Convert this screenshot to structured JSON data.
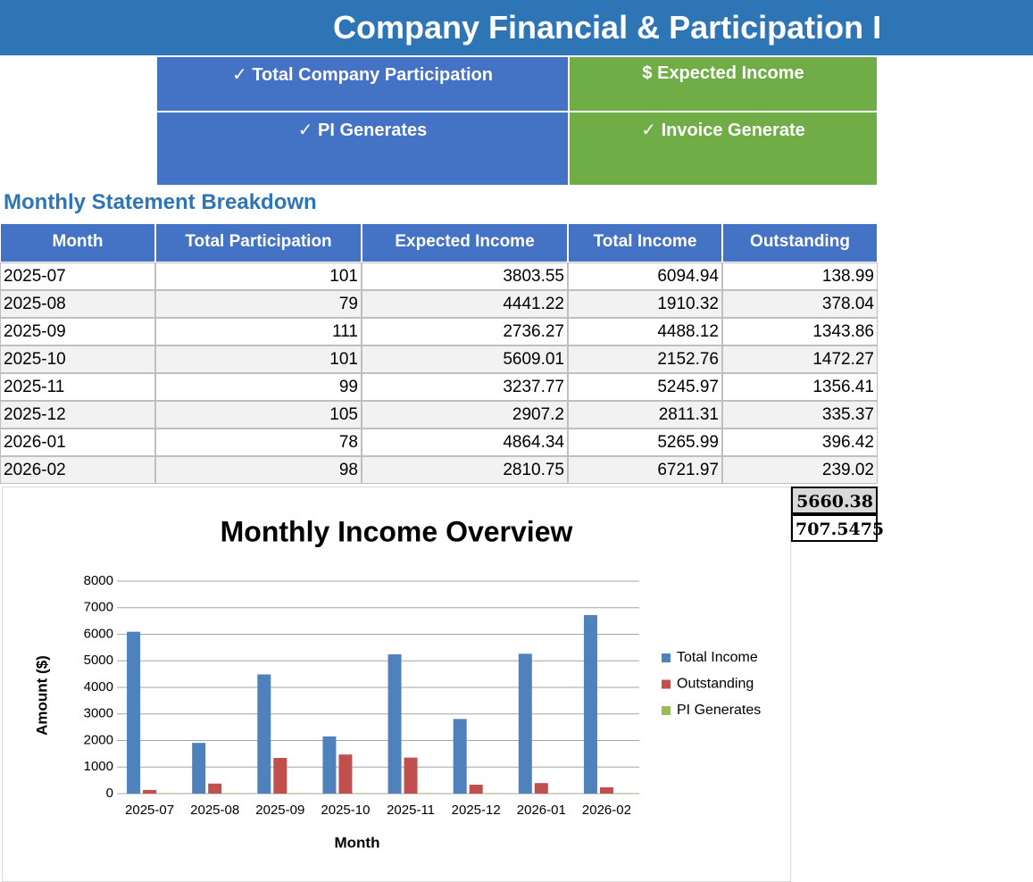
{
  "header": {
    "title": "Company Financial & Participation I"
  },
  "kpis": [
    "✓ Total Company Participation",
    "$ Expected Income",
    "✓ PI Generates",
    "✓ Invoice Generate"
  ],
  "section_title": "Monthly Statement Breakdown",
  "table": {
    "columns": [
      "Month",
      "Total Participation",
      "Expected Income",
      "Total Income",
      "Outstanding"
    ],
    "rows": [
      [
        "2025-07",
        101,
        3803.55,
        6094.94,
        138.99
      ],
      [
        "2025-08",
        79,
        4441.22,
        1910.32,
        378.04
      ],
      [
        "2025-09",
        111,
        2736.27,
        4488.12,
        1343.86
      ],
      [
        "2025-10",
        101,
        5609.01,
        2152.76,
        1472.27
      ],
      [
        "2025-11",
        99,
        3237.77,
        5245.97,
        1356.41
      ],
      [
        "2025-12",
        105,
        2907.2,
        2811.31,
        335.37
      ],
      [
        "2026-01",
        78,
        4864.34,
        5265.99,
        396.42
      ],
      [
        "2026-02",
        98,
        2810.75,
        6721.97,
        239.02
      ]
    ]
  },
  "totals": [
    5660.38,
    707.5475
  ],
  "chart_data": {
    "type": "bar",
    "title": "Monthly Income Overview",
    "x_label": "Month",
    "y_label": "Amount ($)",
    "categories": [
      "2025-07",
      "2025-08",
      "2025-09",
      "2025-10",
      "2025-11",
      "2025-12",
      "2026-01",
      "2026-02"
    ],
    "series": [
      {
        "name": "Total Income",
        "color": "#4f81bd",
        "values": [
          6094.94,
          1910.32,
          4488.12,
          2152.76,
          5245.97,
          2811.31,
          5265.99,
          6721.97
        ]
      },
      {
        "name": "Outstanding",
        "color": "#c0504d",
        "values": [
          138.99,
          378.04,
          1343.86,
          1472.27,
          1356.41,
          335.37,
          396.42,
          239.02
        ]
      },
      {
        "name": "PI Generates",
        "color": "#9bbb59",
        "values": [
          20,
          20,
          20,
          20,
          20,
          20,
          20,
          20
        ]
      }
    ],
    "ylim": [
      0,
      8000
    ],
    "yticks": [
      0,
      1000,
      2000,
      3000,
      4000,
      5000,
      6000,
      7000,
      8000
    ],
    "grid": true
  }
}
